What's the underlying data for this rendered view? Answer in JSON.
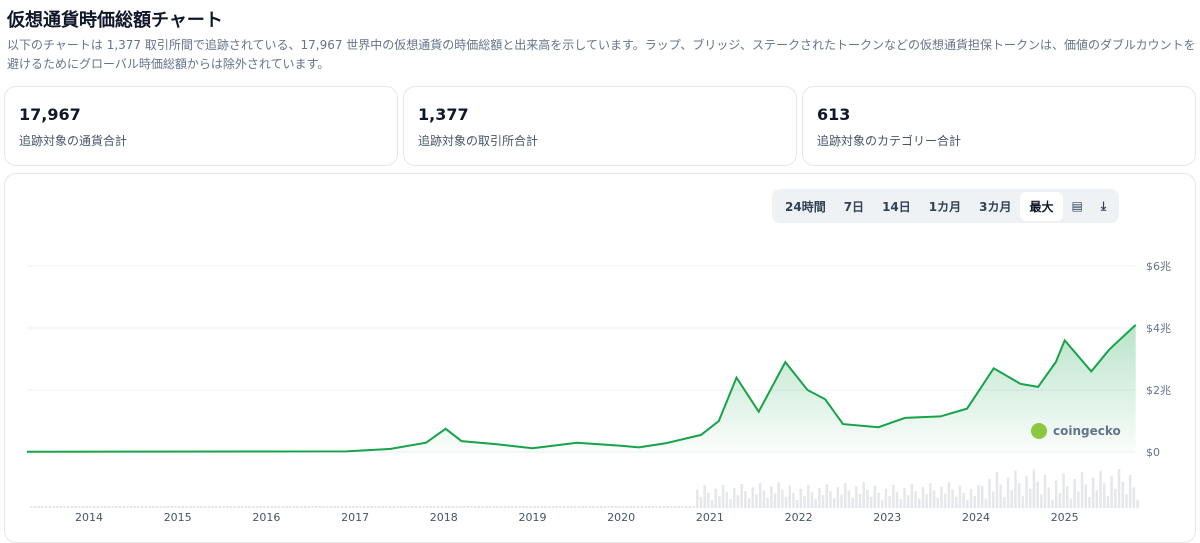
{
  "title": "仮想通貨時価総額チャート",
  "description": "以下のチャートは 1,377 取引所間で追跡されている、17,967 世界中の仮想通貨の時価総額と出来高を示しています。ラップ、ブリッジ、ステークされたトークンなどの仮想通貨担保トークンは、価値のダブルカウントを避けるためにグローバル時価総額からは除外されています。",
  "stats": [
    {
      "value": "17,967",
      "label": "追跡対象の通貨合計"
    },
    {
      "value": "1,377",
      "label": "追跡対象の取引所合計"
    },
    {
      "value": "613",
      "label": "追跡対象のカテゴリー合計"
    }
  ],
  "tabs": [
    "24時間",
    "7日",
    "14日",
    "1カ月",
    "3カ月",
    "最大"
  ],
  "active_tab": "最大",
  "watermark": "coingecko",
  "chart_data": {
    "type": "area",
    "color": "#16a34a",
    "x": [
      2013.3,
      2016.9,
      2017.4,
      2017.8,
      2018.02,
      2018.2,
      2018.6,
      2019.0,
      2019.5,
      2020.0,
      2020.2,
      2020.5,
      2020.9,
      2021.1,
      2021.3,
      2021.55,
      2021.85,
      2022.1,
      2022.3,
      2022.5,
      2022.9,
      2023.2,
      2023.6,
      2023.9,
      2024.2,
      2024.5,
      2024.7,
      2024.9,
      2025.0,
      2025.3,
      2025.5,
      2025.8
    ],
    "y": [
      0.01,
      0.02,
      0.1,
      0.3,
      0.75,
      0.35,
      0.25,
      0.12,
      0.3,
      0.2,
      0.15,
      0.28,
      0.55,
      1.0,
      2.4,
      1.3,
      2.9,
      2.0,
      1.7,
      0.9,
      0.8,
      1.1,
      1.15,
      1.4,
      2.7,
      2.2,
      2.1,
      2.9,
      3.6,
      2.6,
      3.3,
      4.1
    ],
    "x_ticks": [
      "2014",
      "2015",
      "2016",
      "2017",
      "2018",
      "2019",
      "2020",
      "2021",
      "2022",
      "2023",
      "2024",
      "2025"
    ],
    "y_ticks": [
      {
        "v": 0,
        "label": "$0"
      },
      {
        "v": 2,
        "label": "$2兆"
      },
      {
        "v": 4,
        "label": "$4兆"
      },
      {
        "v": 6,
        "label": "$6兆"
      }
    ],
    "ylim": [
      0,
      6
    ],
    "grid": true
  }
}
